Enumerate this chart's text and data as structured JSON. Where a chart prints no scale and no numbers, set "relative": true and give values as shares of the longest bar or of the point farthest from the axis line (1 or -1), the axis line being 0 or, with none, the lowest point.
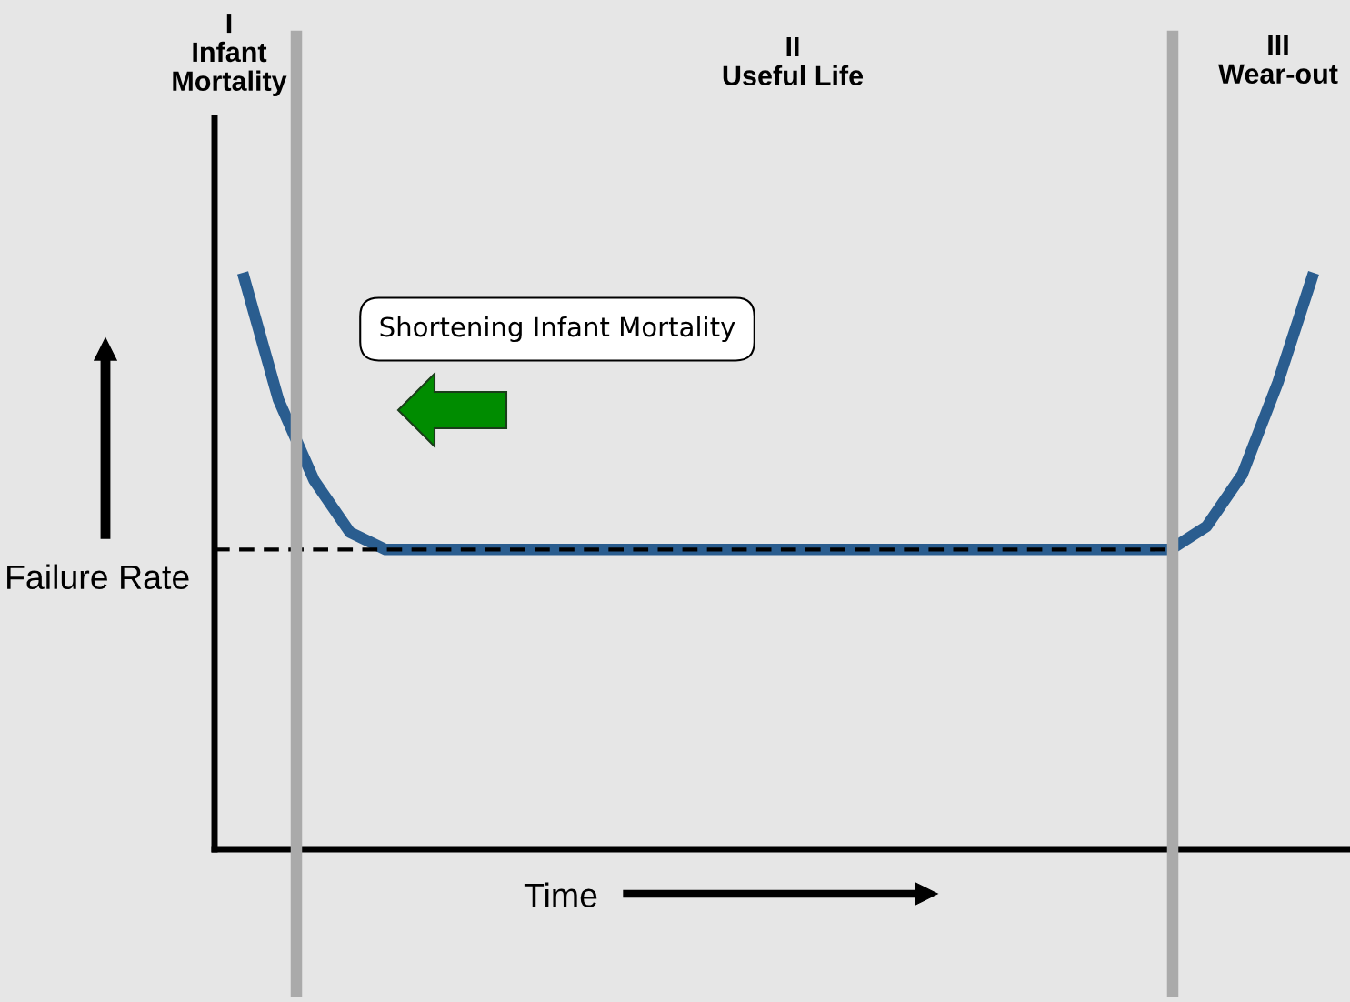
{
  "chart_data": {
    "type": "line",
    "relative": true,
    "xlabel": "Time",
    "ylabel": "Failure Rate",
    "categories": [
      null,
      null,
      null,
      null,
      null,
      null,
      null,
      null,
      null,
      null,
      null,
      null,
      null,
      null,
      null,
      null,
      null,
      null,
      null,
      null,
      null,
      null,
      null,
      null,
      null,
      null,
      null,
      null,
      null,
      null,
      null
    ],
    "series": [
      {
        "color": "#2a5d8f",
        "values": [
          1.0,
          0.78,
          0.64,
          0.55,
          0.52,
          0.52,
          0.52,
          0.52,
          0.52,
          0.52,
          0.52,
          0.52,
          0.52,
          0.52,
          0.52,
          0.52,
          0.52,
          0.52,
          0.52,
          0.52,
          0.52,
          0.52,
          0.52,
          0.52,
          0.52,
          0.52,
          0.52,
          0.56,
          0.65,
          0.81,
          1.0
        ]
      }
    ],
    "ref_lines": [
      {
        "axis": "y",
        "value": 0.52,
        "color": "#000000",
        "line_style": "dashed"
      }
    ],
    "annotations": [
      "I\nInfant\nMortality",
      "II\nUseful Life",
      "III\nWear-out",
      "Shortening Infant Mortality"
    ],
    "grid": false,
    "legend": false,
    "marker": "none",
    "line_style": "solid"
  }
}
